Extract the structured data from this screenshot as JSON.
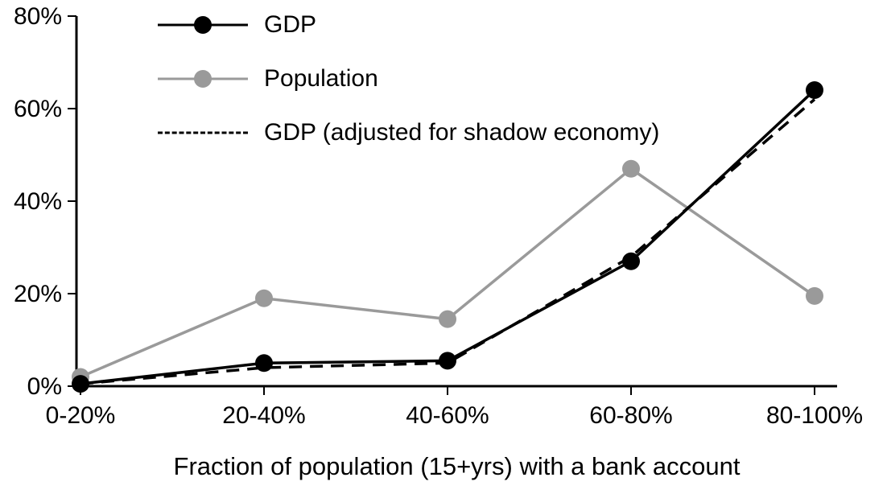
{
  "chart_data": {
    "type": "line",
    "title": "",
    "xlabel": "Fraction of population (15+yrs) with a bank account",
    "ylabel": "",
    "categories": [
      "0-20%",
      "20-40%",
      "40-60%",
      "60-80%",
      "80-100%"
    ],
    "series": [
      {
        "name": "GDP",
        "values": [
          0.5,
          5,
          5.5,
          27,
          64
        ],
        "color": "#000000",
        "marker": true,
        "dash": false
      },
      {
        "name": "Population",
        "values": [
          2,
          19,
          14.5,
          47,
          19.5
        ],
        "color": "#9a9a9a",
        "marker": true,
        "dash": false
      },
      {
        "name": "GDP (adjusted for shadow economy)",
        "values": [
          0.5,
          4,
          5,
          28,
          62
        ],
        "color": "#000000",
        "marker": false,
        "dash": true
      }
    ],
    "ylim": [
      0,
      80
    ],
    "ytick_step": 20,
    "ytick_labels": [
      "0%",
      "20%",
      "40%",
      "60%",
      "80%"
    ],
    "grid": false,
    "legend_position": "top-left",
    "axis_color": "#000000"
  }
}
